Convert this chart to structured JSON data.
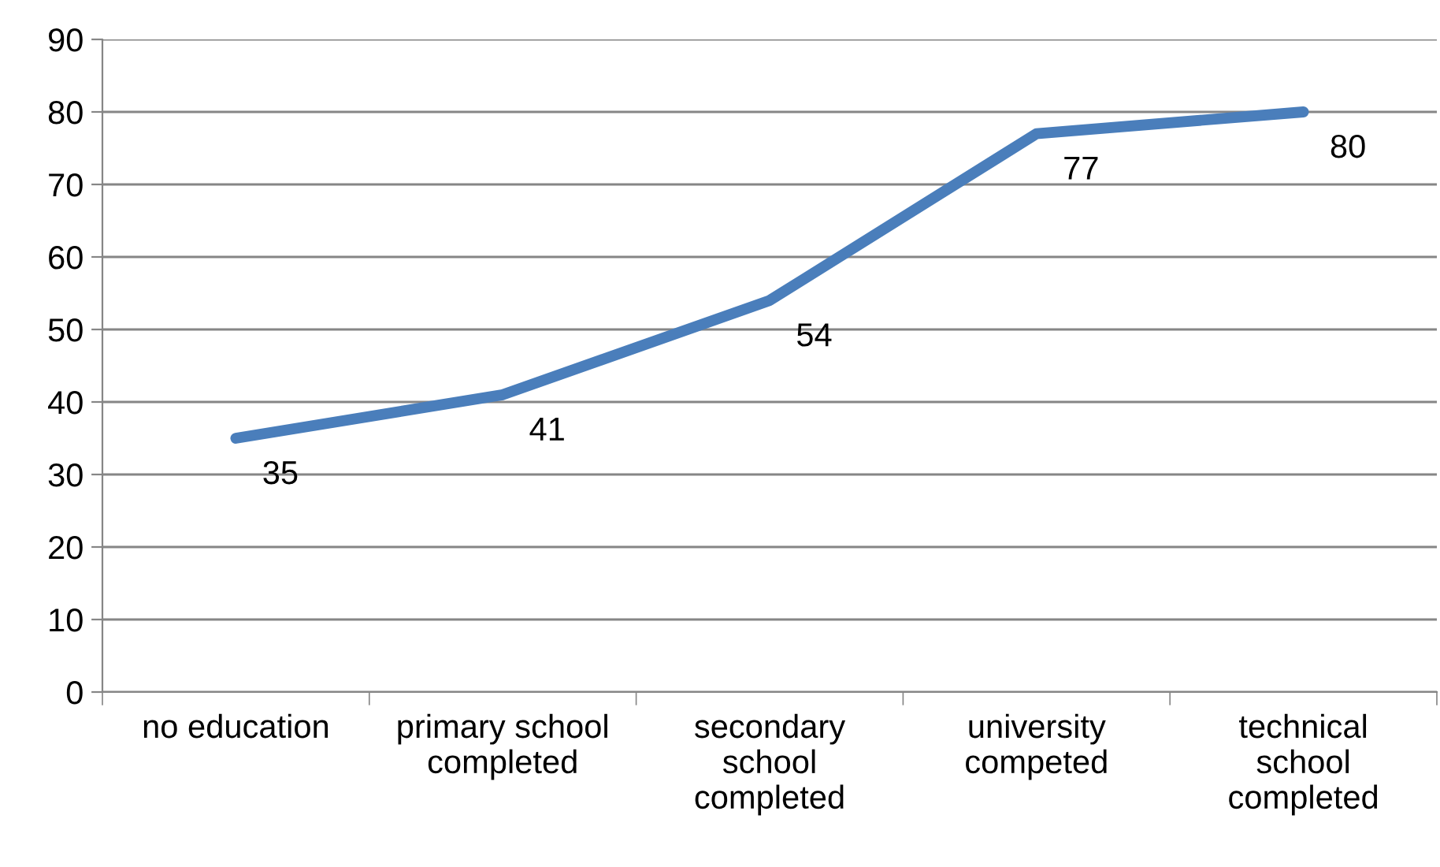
{
  "chart_data": {
    "type": "line",
    "categories": [
      "no education",
      "primary school completed",
      "secondary school completed",
      "university competed",
      "technical school completed"
    ],
    "series": [
      {
        "color": "#4a7ebb",
        "values": [
          35,
          41,
          54,
          77,
          80
        ]
      }
    ],
    "ylim": [
      0,
      90
    ],
    "yticks": [
      0,
      10,
      20,
      30,
      40,
      50,
      60,
      70,
      80,
      90
    ],
    "grid": "y",
    "legend": false,
    "marker": "none",
    "line_style": "solid",
    "data_labels": true
  }
}
